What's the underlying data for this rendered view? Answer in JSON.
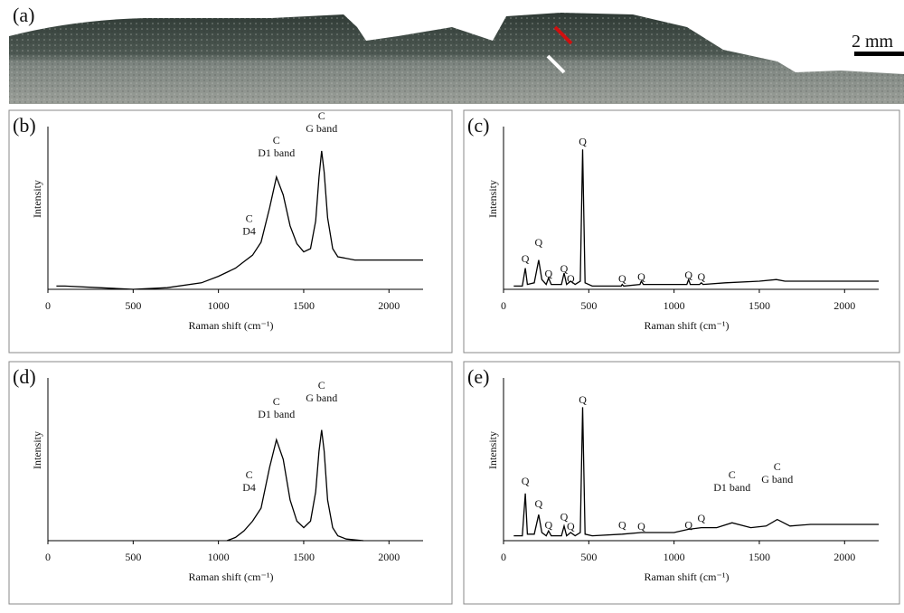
{
  "panel_a": {
    "label": "(a)",
    "scale_bar": "2 mm"
  },
  "chart_data": [
    {
      "type": "line",
      "label": "(b)",
      "x_label": "Raman shift (cm⁻¹)",
      "y_label": "Intensity",
      "xlim": [
        0,
        2200
      ],
      "xticks": [
        0,
        500,
        1000,
        1500,
        2000
      ],
      "ylim": [
        0,
        100
      ],
      "color": "#000000",
      "x": [
        50,
        100,
        300,
        500,
        700,
        900,
        1000,
        1100,
        1150,
        1200,
        1250,
        1300,
        1340,
        1380,
        1420,
        1460,
        1500,
        1540,
        1570,
        1590,
        1605,
        1620,
        1640,
        1670,
        1700,
        1800,
        1900,
        2000,
        2200
      ],
      "values": [
        2,
        2,
        1,
        0,
        1,
        4,
        8,
        13,
        17,
        21,
        29,
        50,
        69,
        58,
        39,
        28,
        23,
        25,
        42,
        69,
        85,
        72,
        44,
        25,
        20,
        18,
        18,
        18,
        18
      ],
      "annotations": [
        {
          "x": 1180,
          "y": 38,
          "lines": [
            "C",
            "D4"
          ]
        },
        {
          "x": 1340,
          "y": 86,
          "lines": [
            "C",
            "D1 band"
          ]
        },
        {
          "x": 1605,
          "y": 101,
          "lines": [
            "C",
            "G band"
          ]
        }
      ]
    },
    {
      "type": "line",
      "label": "(c)",
      "x_label": "Raman shift (cm⁻¹)",
      "y_label": "Intensity",
      "xlim": [
        0,
        2200
      ],
      "xticks": [
        0,
        500,
        1000,
        1500,
        2000
      ],
      "ylim": [
        0,
        100
      ],
      "color": "#000000",
      "x": [
        60,
        110,
        128,
        140,
        180,
        206,
        225,
        250,
        264,
        280,
        340,
        355,
        370,
        394,
        420,
        450,
        464,
        478,
        520,
        690,
        696,
        705,
        800,
        808,
        820,
        1075,
        1085,
        1095,
        1150,
        1160,
        1170,
        1300,
        1500,
        1600,
        1650,
        1800,
        2200
      ],
      "values": [
        2,
        2,
        13,
        3,
        4,
        18,
        6,
        3,
        7,
        3,
        3,
        10,
        3,
        5,
        3,
        5,
        86,
        4,
        2,
        2,
        3,
        2,
        3,
        5,
        3,
        3,
        6,
        3,
        3,
        4,
        3,
        4,
        5,
        6,
        5,
        5,
        5
      ],
      "annotations": [
        {
          "x": 128,
          "y": 21,
          "lines": [
            "Q"
          ]
        },
        {
          "x": 206,
          "y": 31,
          "lines": [
            "Q"
          ]
        },
        {
          "x": 264,
          "y": 12,
          "lines": [
            "Q"
          ]
        },
        {
          "x": 355,
          "y": 15,
          "lines": [
            "Q"
          ]
        },
        {
          "x": 394,
          "y": 9,
          "lines": [
            "Q"
          ]
        },
        {
          "x": 464,
          "y": 93,
          "lines": [
            "Q"
          ]
        },
        {
          "x": 696,
          "y": 9,
          "lines": [
            "Q"
          ]
        },
        {
          "x": 808,
          "y": 10,
          "lines": [
            "Q"
          ]
        },
        {
          "x": 1085,
          "y": 11,
          "lines": [
            "Q"
          ]
        },
        {
          "x": 1160,
          "y": 10,
          "lines": [
            "Q"
          ]
        }
      ]
    },
    {
      "type": "line",
      "label": "(d)",
      "x_label": "Raman shift (cm⁻¹)",
      "y_label": "Intensity",
      "xlim": [
        0,
        2200
      ],
      "xticks": [
        0,
        500,
        1000,
        1500,
        2000
      ],
      "ylim": [
        0,
        100
      ],
      "color": "#000000",
      "x": [
        1050,
        1100,
        1150,
        1200,
        1250,
        1300,
        1340,
        1380,
        1420,
        1460,
        1500,
        1540,
        1570,
        1590,
        1605,
        1620,
        1640,
        1670,
        1700,
        1750,
        1850
      ],
      "values": [
        0,
        2,
        6,
        12,
        20,
        45,
        62,
        50,
        25,
        12,
        8,
        12,
        30,
        55,
        68,
        55,
        25,
        8,
        3,
        1,
        0
      ],
      "annotations": [
        {
          "x": 1180,
          "y": 35,
          "lines": [
            "C",
            "D4"
          ]
        },
        {
          "x": 1340,
          "y": 80,
          "lines": [
            "C",
            "D1 band"
          ]
        },
        {
          "x": 1605,
          "y": 90,
          "lines": [
            "C",
            "G band"
          ]
        }
      ]
    },
    {
      "type": "line",
      "label": "(e)",
      "x_label": "Raman shift (cm⁻¹)",
      "y_label": "Intensity",
      "xlim": [
        0,
        2200
      ],
      "xticks": [
        0,
        500,
        1000,
        1500,
        2000
      ],
      "ylim": [
        0,
        100
      ],
      "color": "#000000",
      "x": [
        60,
        110,
        128,
        140,
        180,
        206,
        225,
        250,
        264,
        280,
        340,
        355,
        370,
        394,
        420,
        450,
        464,
        478,
        520,
        696,
        808,
        1000,
        1085,
        1160,
        1250,
        1340,
        1450,
        1540,
        1605,
        1680,
        1800,
        2000,
        2200
      ],
      "values": [
        3,
        3,
        29,
        4,
        4,
        16,
        5,
        3,
        6,
        3,
        3,
        9,
        3,
        5,
        3,
        5,
        82,
        4,
        3,
        4,
        5,
        5,
        7,
        8,
        8,
        11,
        8,
        9,
        13,
        9,
        10,
        10,
        10
      ],
      "annotations": [
        {
          "x": 128,
          "y": 39,
          "lines": [
            "Q"
          ]
        },
        {
          "x": 206,
          "y": 25,
          "lines": [
            "Q"
          ]
        },
        {
          "x": 264,
          "y": 12,
          "lines": [
            "Q"
          ]
        },
        {
          "x": 355,
          "y": 17,
          "lines": [
            "Q"
          ]
        },
        {
          "x": 394,
          "y": 11,
          "lines": [
            "Q"
          ]
        },
        {
          "x": 464,
          "y": 89,
          "lines": [
            "Q"
          ]
        },
        {
          "x": 696,
          "y": 12,
          "lines": [
            "Q"
          ]
        },
        {
          "x": 808,
          "y": 11,
          "lines": [
            "Q"
          ]
        },
        {
          "x": 1085,
          "y": 12,
          "lines": [
            "Q"
          ]
        },
        {
          "x": 1160,
          "y": 16,
          "lines": [
            "Q"
          ]
        },
        {
          "x": 1340,
          "y": 35,
          "lines": [
            "C",
            "D1 band"
          ]
        },
        {
          "x": 1605,
          "y": 40,
          "lines": [
            "C",
            "G band"
          ]
        }
      ]
    }
  ]
}
